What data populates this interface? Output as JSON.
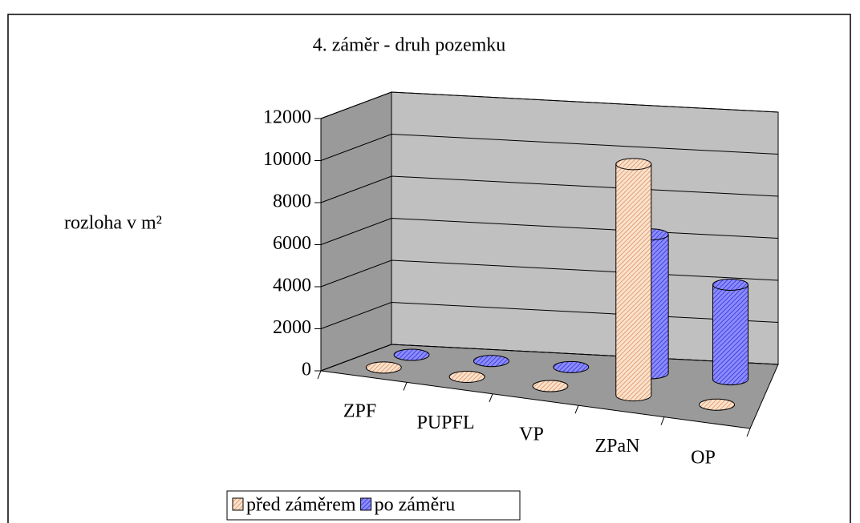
{
  "chart_data": {
    "type": "bar3d",
    "title": "4. záměr - druh pozemku",
    "y_label": "rozloha v m²",
    "categories": [
      "ZPF",
      "PUPFL",
      "VP",
      "ZPaN",
      "OP"
    ],
    "series": [
      {
        "name": "před záměrem",
        "color": "#f7c9a6",
        "values": [
          0,
          0,
          0,
          11000,
          0
        ]
      },
      {
        "name": "po záměru",
        "color": "#6f6fff",
        "values": [
          0,
          0,
          0,
          6600,
          4500
        ]
      }
    ],
    "ylim": [
      0,
      12000
    ],
    "yticks": [
      0,
      2000,
      4000,
      6000,
      8000,
      10000,
      12000
    ],
    "grid": true
  }
}
